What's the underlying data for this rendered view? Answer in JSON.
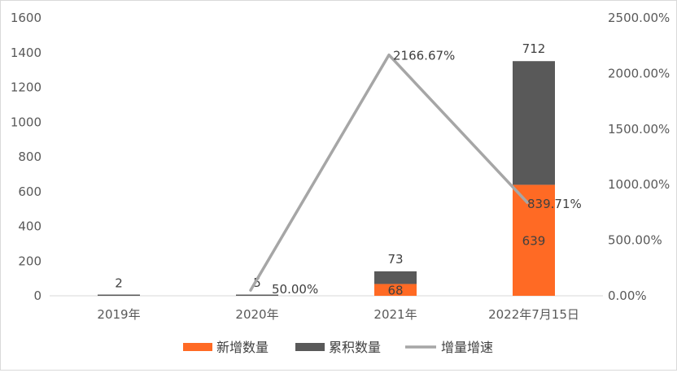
{
  "chart_data": {
    "type": "bar",
    "stacked": true,
    "categories": [
      "2019年",
      "2020年",
      "2021年",
      "2022年7月15日"
    ],
    "series": [
      {
        "name": "新增数量",
        "type": "bar",
        "axis": "left",
        "color": "#ff6a24",
        "values": [
          null,
          null,
          68,
          639
        ],
        "labels": [
          "",
          "",
          "68",
          "639"
        ]
      },
      {
        "name": "累积数量",
        "type": "bar",
        "axis": "left",
        "color": "#595959",
        "values": [
          2,
          5,
          73,
          712
        ],
        "labels": [
          "2",
          "5",
          "73",
          "712"
        ]
      },
      {
        "name": "增量增速",
        "type": "line",
        "axis": "right",
        "color": "#a6a6a6",
        "values": [
          null,
          50.0,
          2166.67,
          839.71
        ],
        "labels": [
          "",
          "50.00%",
          "2166.67%",
          "839.71%"
        ]
      }
    ],
    "y_left": {
      "min": 0,
      "max": 1600,
      "ticks": [
        "0",
        "200",
        "400",
        "600",
        "800",
        "1000",
        "1200",
        "1400",
        "1600"
      ]
    },
    "y_right": {
      "min": 0,
      "max": 2500,
      "ticks": [
        "0.00%",
        "500.00%",
        "1000.00%",
        "1500.00%",
        "2000.00%",
        "2500.00%"
      ]
    },
    "legend_position": "bottom",
    "grid": false
  }
}
